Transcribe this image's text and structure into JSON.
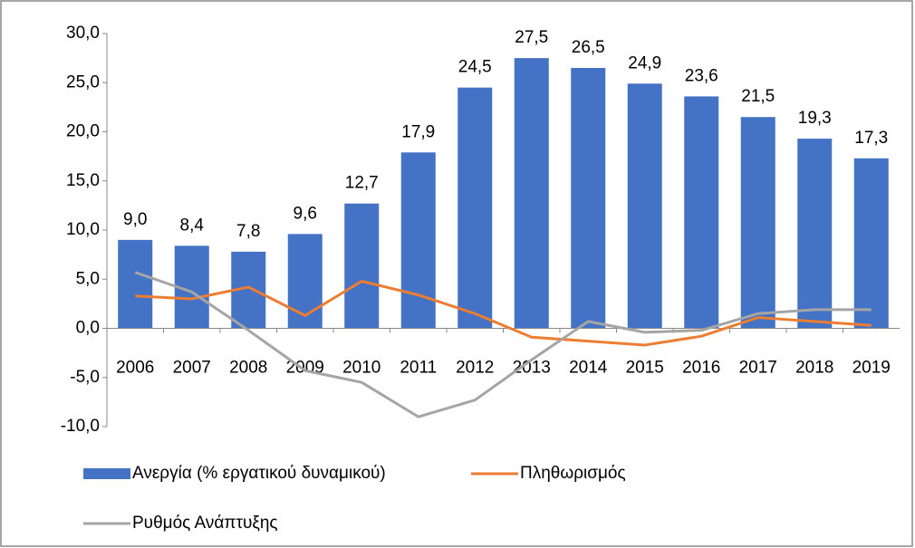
{
  "chart_data": {
    "type": "bar_line",
    "categories": [
      "2006",
      "2007",
      "2008",
      "2009",
      "2010",
      "2011",
      "2012",
      "2013",
      "2014",
      "2015",
      "2016",
      "2017",
      "2018",
      "2019"
    ],
    "series": [
      {
        "name": "Ανεργία (% εργατικού δυναμικού)",
        "type": "bar",
        "color": "#4472c4",
        "values": [
          9.0,
          8.4,
          7.8,
          9.6,
          12.7,
          17.9,
          24.5,
          27.5,
          26.5,
          24.9,
          23.6,
          21.5,
          19.3,
          17.3
        ],
        "value_labels": [
          "9,0",
          "8,4",
          "7,8",
          "9,6",
          "12,7",
          "17,9",
          "24,5",
          "27,5",
          "26,5",
          "24,9",
          "23,6",
          "21,5",
          "19,3",
          "17,3"
        ]
      },
      {
        "name": "Πληθωρισμός",
        "type": "line",
        "color": "#ed7d31",
        "values": [
          3.3,
          3.0,
          4.2,
          1.3,
          4.8,
          3.4,
          1.5,
          -0.9,
          -1.3,
          -1.7,
          -0.8,
          1.1,
          0.7,
          0.3
        ]
      },
      {
        "name": "Ρυθμός Ανάπτυξης",
        "type": "line",
        "color": "#a5a5a5",
        "values": [
          5.7,
          3.7,
          -0.2,
          -4.3,
          -5.5,
          -9.0,
          -7.3,
          -3.2,
          0.7,
          -0.4,
          -0.2,
          1.5,
          1.9,
          1.9
        ]
      }
    ],
    "ylim": [
      -10,
      30
    ],
    "yticks": [
      {
        "value": -10,
        "label": "-10,0"
      },
      {
        "value": -5,
        "label": "-5,0"
      },
      {
        "value": 0,
        "label": "0,0"
      },
      {
        "value": 5,
        "label": "5,0"
      },
      {
        "value": 10,
        "label": "10,0"
      },
      {
        "value": 15,
        "label": "15,0"
      },
      {
        "value": 20,
        "label": "20,0"
      },
      {
        "value": 25,
        "label": "25,0"
      },
      {
        "value": 30,
        "label": "30,0"
      }
    ],
    "grid": false,
    "legend": "bottom"
  }
}
